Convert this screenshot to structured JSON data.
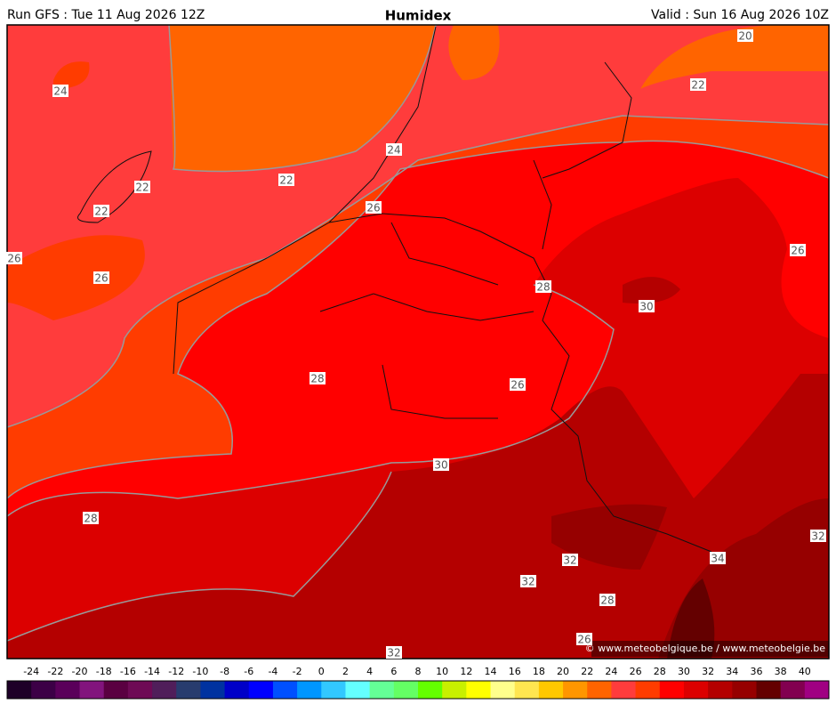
{
  "header": {
    "run": "Run GFS : Tue 11 Aug 2026 12Z",
    "title": "Humidex",
    "valid": "Valid : Sun 16 Aug 2026 10Z"
  },
  "contour_labels": [
    "20",
    "22",
    "24",
    "24",
    "22",
    "22",
    "22",
    "26",
    "26",
    "26",
    "26",
    "28",
    "30",
    "28",
    "26",
    "30",
    "28",
    "32",
    "32",
    "34",
    "32",
    "28",
    "26",
    "32"
  ],
  "copyright": "© www.meteobelgique.be / www.meteobelgie.be",
  "colorbar": {
    "labels": [
      -24,
      -22,
      -20,
      -18,
      -16,
      -14,
      -12,
      -10,
      -8,
      -6,
      -4,
      -2,
      0,
      2,
      4,
      6,
      8,
      10,
      12,
      14,
      16,
      18,
      20,
      22,
      24,
      26,
      28,
      30,
      32,
      34,
      36,
      38,
      40
    ],
    "colors": [
      "#1e0028",
      "#3c0046",
      "#5a005a",
      "#82147d",
      "#5a0041",
      "#6e0a55",
      "#501e5a",
      "#283c6e",
      "#0032a0",
      "#0000c8",
      "#0000ff",
      "#0050ff",
      "#0096ff",
      "#32c8ff",
      "#64ffff",
      "#64ff96",
      "#64ff64",
      "#64ff00",
      "#c8f000",
      "#ffff00",
      "#ffff8c",
      "#ffe650",
      "#ffc800",
      "#ff9600",
      "#ff6400",
      "#ff3c3c",
      "#ff3c00",
      "#ff0000",
      "#dc0000",
      "#b40000",
      "#960000",
      "#640000",
      "#820050",
      "#a00082"
    ]
  }
}
